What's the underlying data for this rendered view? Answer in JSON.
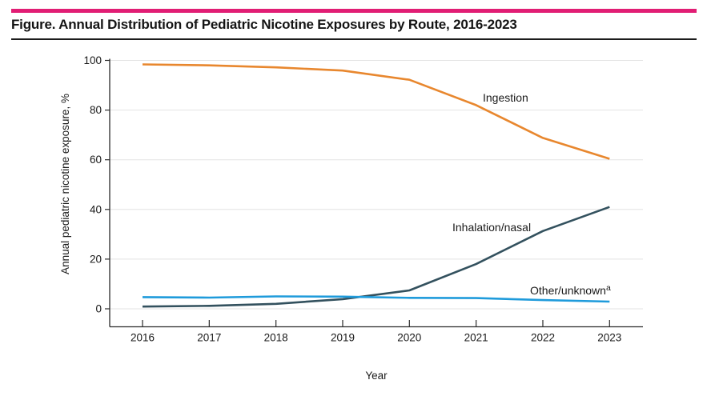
{
  "header": {
    "title": "Figure. Annual Distribution of Pediatric Nicotine Exposures by Route, 2016-2023",
    "accent_color": "#E11D74"
  },
  "chart_data": {
    "type": "line",
    "title": "Annual Distribution of Pediatric Nicotine Exposures by Route, 2016-2023",
    "xlabel": "Year",
    "ylabel": "Annual pediatric nicotine exposure, %",
    "x": [
      2016,
      2017,
      2018,
      2019,
      2020,
      2021,
      2022,
      2023
    ],
    "ylim": [
      0,
      100
    ],
    "y_ticks": [
      0,
      20,
      40,
      60,
      80,
      100
    ],
    "grid": true,
    "legend_position": "inline labels beside lines",
    "footnote_marker": "a",
    "series": [
      {
        "name": "Ingestion",
        "color": "#E8872E",
        "values": [
          98.4,
          98.0,
          97.2,
          95.9,
          92.2,
          82.0,
          68.8,
          60.4
        ]
      },
      {
        "name": "Inhalation/nasal",
        "color": "#33515E",
        "values": [
          0.9,
          1.2,
          2.0,
          3.9,
          7.4,
          18.0,
          31.3,
          41.0
        ]
      },
      {
        "name": "Other/unknown",
        "color": "#1F9BDB",
        "values": [
          4.7,
          4.5,
          5.0,
          4.9,
          4.4,
          4.3,
          3.5,
          2.9
        ]
      }
    ]
  }
}
